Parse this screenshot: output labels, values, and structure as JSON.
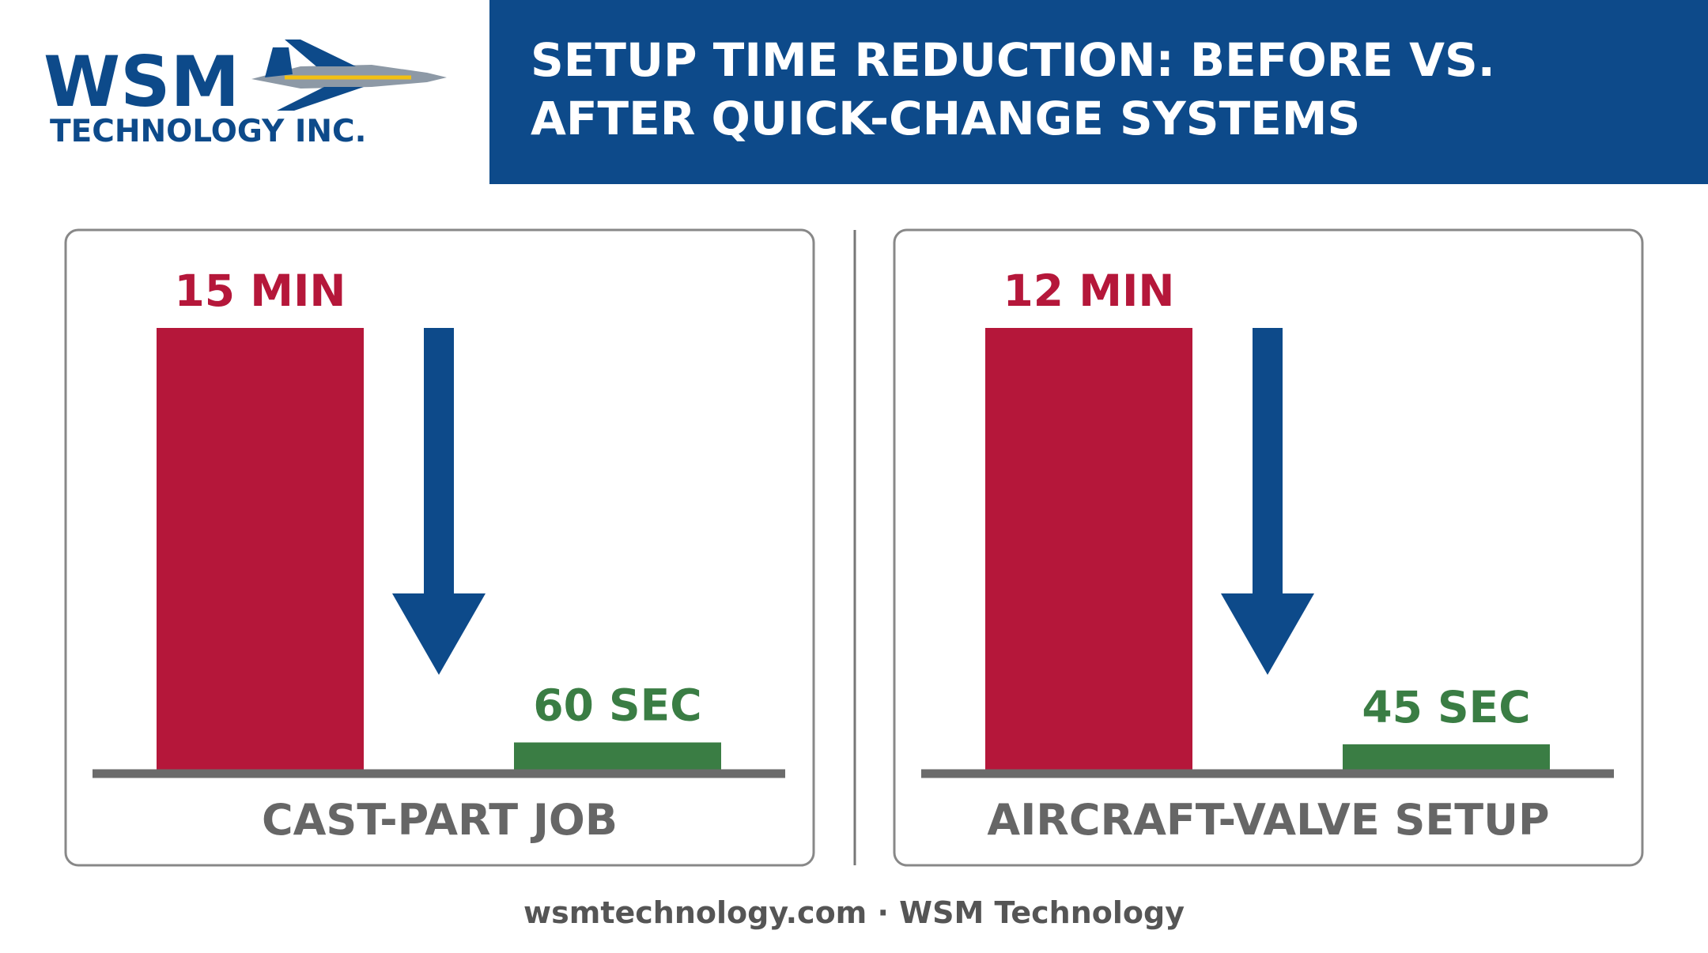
{
  "header": {
    "logo_main": "WSM",
    "logo_sub": "TECHNOLOGY INC.",
    "title_lines": [
      "SETUP TIME REDUCTION: BEFORE VS.",
      "AFTER QUICK-CHANGE SYSTEMS"
    ]
  },
  "chart_data": [
    {
      "type": "bar",
      "xlabel": "CAST-PART JOB",
      "values": [
        900,
        60
      ],
      "value_labels": [
        "15 MIN",
        "60 SEC"
      ],
      "colors": [
        "#b5173a",
        "#3a7d44"
      ]
    },
    {
      "type": "bar",
      "xlabel": "AIRCRAFT-VALVE SETUP",
      "values": [
        720,
        45
      ],
      "value_labels": [
        "12 MIN",
        "45 SEC"
      ],
      "colors": [
        "#b5173a",
        "#3a7d44"
      ]
    }
  ],
  "footer": "wsmtechnology.com · WSM Technology"
}
